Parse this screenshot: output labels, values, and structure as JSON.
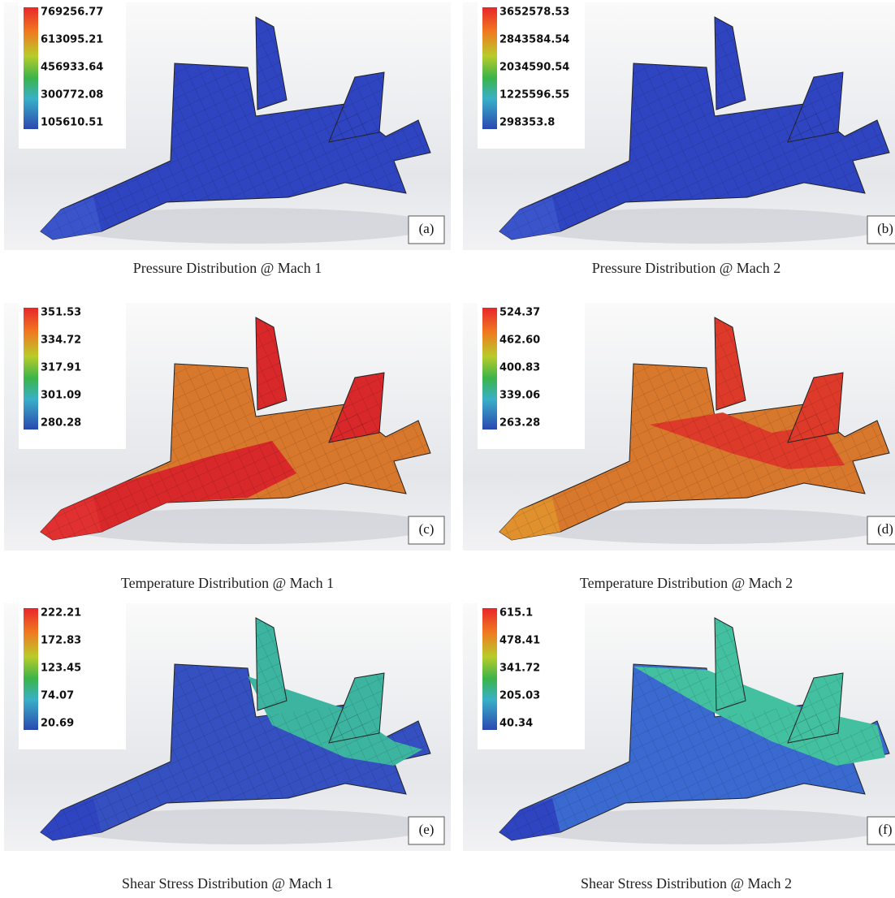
{
  "panels": [
    {
      "legend": [
        "769256.77",
        "613095.21",
        "456933.64",
        "300772.08",
        "105610.51"
      ],
      "label": "(a)",
      "caption": "Pressure Distribution @ Mach 1"
    },
    {
      "legend": [
        "3652578.53",
        "2843584.54",
        "2034590.54",
        "1225596.55",
        "298353.8"
      ],
      "label": "(b)",
      "caption": "Pressure Distribution @ Mach 2"
    },
    {
      "legend": [
        "351.53",
        "334.72",
        "317.91",
        "301.09",
        "280.28"
      ],
      "label": "(c)",
      "caption": "Temperature Distribution @ Mach 1"
    },
    {
      "legend": [
        "524.37",
        "462.60",
        "400.83",
        "339.06",
        "263.28"
      ],
      "label": "(d)",
      "caption": "Temperature Distribution @ Mach 2"
    },
    {
      "legend": [
        "222.21",
        "172.83",
        "123.45",
        "74.07",
        "20.69"
      ],
      "label": "(e)",
      "caption": "Shear Stress Distribution @ Mach 1"
    },
    {
      "legend": [
        "615.1",
        "478.41",
        "341.72",
        "205.03",
        "40.34"
      ],
      "label": "(f)",
      "caption": "Shear Stress Distribution @ Mach 2"
    }
  ]
}
